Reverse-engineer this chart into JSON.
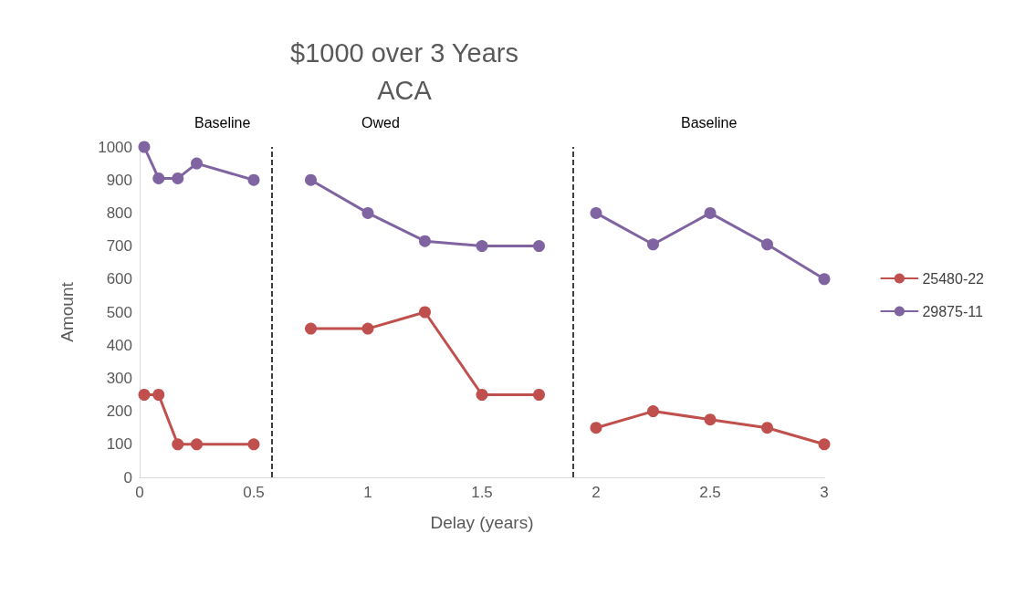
{
  "chart_data": {
    "type": "line",
    "title": "$1000 over 3 Years",
    "subtitle": "ACA",
    "xlabel": "Delay (years)",
    "ylabel": "Amount",
    "x": [
      0.02,
      0.083,
      0.167,
      0.25,
      0.5,
      null,
      0.75,
      1,
      1.25,
      1.5,
      1.75,
      null,
      2,
      2.25,
      2.5,
      2.75,
      3
    ],
    "series": [
      {
        "name": "25480-22",
        "color": "#c0504d",
        "values": [
          250,
          250,
          100,
          100,
          100,
          null,
          450,
          450,
          500,
          250,
          250,
          null,
          150,
          200,
          175,
          150,
          100
        ]
      },
      {
        "name": "29875-11",
        "color": "#8064a2",
        "values": [
          1000,
          905,
          905,
          950,
          900,
          null,
          900,
          800,
          715,
          700,
          700,
          null,
          800,
          705,
          800,
          705,
          600
        ]
      }
    ],
    "xlim": [
      0,
      3
    ],
    "xticks": [
      0,
      0.5,
      1,
      1.5,
      2,
      2.5,
      3
    ],
    "ylim": [
      0,
      1000
    ],
    "yticks": [
      0,
      100,
      200,
      300,
      400,
      500,
      600,
      700,
      800,
      900,
      1000
    ],
    "ref_lines": [
      {
        "axis": "x",
        "value": 0.585,
        "color": "#000000",
        "line_style": "dashed"
      },
      {
        "axis": "x",
        "value": 1.9,
        "color": "#000000",
        "line_style": "dashed"
      }
    ],
    "annotations": [
      "Baseline",
      "Owed",
      "Baseline"
    ],
    "grid": false,
    "legend": "right",
    "marker": "circle",
    "line_style": "solid"
  }
}
